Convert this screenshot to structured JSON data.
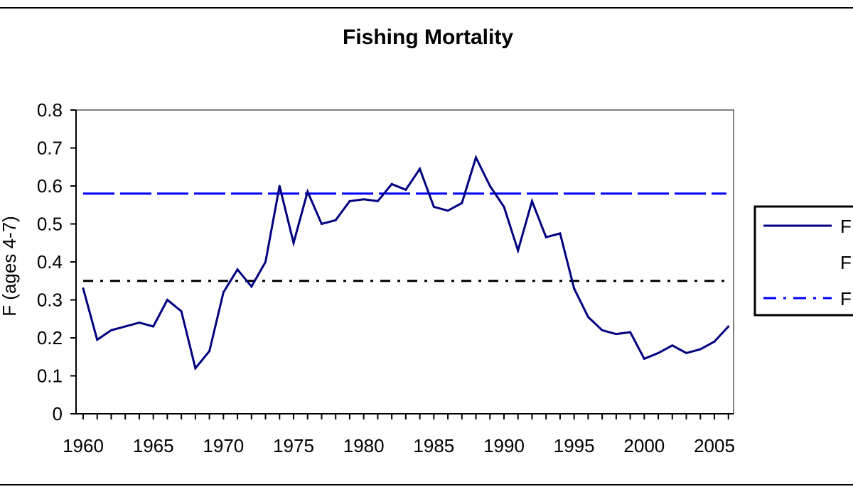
{
  "chart_data": {
    "type": "line",
    "title": "Fishing Mortality",
    "xlabel": "",
    "ylabel": "F (ages 4-7)",
    "xlim": [
      1960,
      2006
    ],
    "ylim": [
      0,
      0.8
    ],
    "x_ticks": [
      "1960",
      "1965",
      "1970",
      "1975",
      "1980",
      "1985",
      "1990",
      "1995",
      "2000",
      "2005"
    ],
    "y_ticks": [
      "0",
      "0.1",
      "0.2",
      "0.3",
      "0.4",
      "0.5",
      "0.6",
      "0.7",
      "0.8"
    ],
    "grid": false,
    "legend_position": "right",
    "series": [
      {
        "name": "F",
        "style": "solid",
        "color": "#000080",
        "x": [
          1960,
          1961,
          1962,
          1963,
          1964,
          1965,
          1966,
          1967,
          1968,
          1969,
          1970,
          1971,
          1972,
          1973,
          1974,
          1975,
          1976,
          1977,
          1978,
          1979,
          1980,
          1981,
          1982,
          1983,
          1984,
          1985,
          1986,
          1987,
          1988,
          1989,
          1990,
          1991,
          1992,
          1993,
          1994,
          1995,
          1996,
          1997,
          1998,
          1999,
          2000,
          2001,
          2002,
          2003,
          2004,
          2005,
          2006
        ],
        "values": [
          0.33,
          0.195,
          0.22,
          0.23,
          0.24,
          0.23,
          0.3,
          0.27,
          0.12,
          0.165,
          0.32,
          0.38,
          0.335,
          0.4,
          0.6,
          0.45,
          0.585,
          0.5,
          0.51,
          0.56,
          0.565,
          0.56,
          0.605,
          0.59,
          0.645,
          0.545,
          0.535,
          0.555,
          0.675,
          0.6,
          0.545,
          0.43,
          0.56,
          0.465,
          0.475,
          0.33,
          0.255,
          0.22,
          0.21,
          0.215,
          0.145,
          0.16,
          0.18,
          0.16,
          0.17,
          0.19,
          0.23
        ]
      },
      {
        "name": "F",
        "style": "dash-dot",
        "color": "#000000",
        "constant": 0.35
      },
      {
        "name": "F",
        "style": "long-dash",
        "color": "#0000FF",
        "constant": 0.58
      }
    ]
  }
}
